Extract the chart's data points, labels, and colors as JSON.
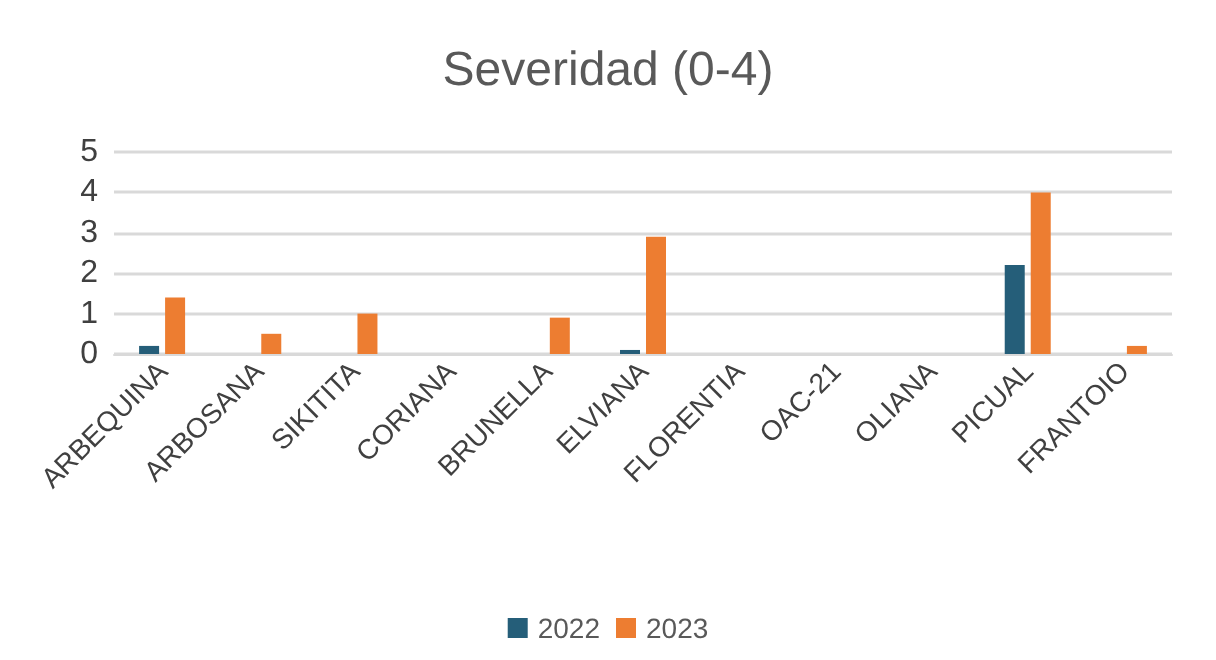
{
  "chart_data": {
    "type": "bar",
    "title": "Severidad (0-4)",
    "categories": [
      "ARBEQUINA",
      "ARBOSANA",
      "SIKITITA",
      "CORIANA",
      "BRUNELLA",
      "ELVIANA",
      "FLORENTIA",
      "OAC-21",
      "OLIANA",
      "PICUAL",
      "FRANTOIO"
    ],
    "series": [
      {
        "name": "2022",
        "color": "#255e79",
        "values": [
          0.2,
          0,
          0,
          0,
          0,
          0.1,
          0,
          0,
          0,
          2.2,
          0
        ]
      },
      {
        "name": "2023",
        "color": "#ed7d31",
        "values": [
          1.4,
          0.5,
          1.0,
          0,
          0.9,
          2.9,
          0,
          0,
          0,
          4.0,
          0.2
        ]
      }
    ],
    "ylim": [
      0,
      5
    ],
    "yticks": [
      0,
      1,
      2,
      3,
      4,
      5
    ],
    "grid": "y",
    "legend": "bottom"
  }
}
